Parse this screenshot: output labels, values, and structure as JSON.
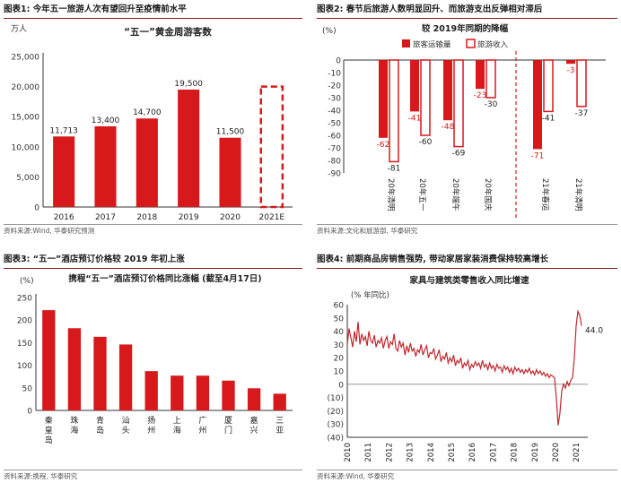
{
  "colors": {
    "bar": "#d7191c",
    "line": "#c1272d",
    "axis": "#333333",
    "dashed": "#d7191c"
  },
  "panels": [
    {
      "header_num": "图表1:",
      "header_text": "今年五一旅游人次有望回升至疫情前水平",
      "source": "资料来源:Wind, 华泰研究预测"
    },
    {
      "header_num": "图表2:",
      "header_text": "春节后旅游人数明显回升、而旅游支出反弹相对滞后",
      "source": "资料来源:文化和旅游部, 华泰研究"
    },
    {
      "header_num": "图表3:",
      "header_text": "“五一”酒店预订价格较 2019 年初上涨",
      "source": "资料来源:携程, 华泰研究"
    },
    {
      "header_num": "图表4:",
      "header_text": "前期商品房销售强势, 带动家居家装消费保持较高增长",
      "source": "资料来源:Wind, 华泰研究"
    }
  ],
  "chart_data": [
    {
      "type": "bar",
      "title": "“五一”黄金周游客数",
      "ylabel": "万人",
      "categories": [
        "2016",
        "2017",
        "2018",
        "2019",
        "2020",
        "2021E"
      ],
      "values": [
        11713,
        13400,
        14700,
        19500,
        11500,
        null
      ],
      "value_labels": [
        "11,713",
        "13,400",
        "14,700",
        "19,500",
        "11,500",
        ""
      ],
      "estimate_category": "2021E",
      "estimate_value": 20000,
      "ylim": [
        0,
        25000
      ],
      "yticks": [
        0,
        5000,
        10000,
        15000,
        20000,
        25000
      ],
      "ytick_labels": [
        "0",
        "5,000",
        "10,000",
        "15,000",
        "20,000",
        "25,000"
      ]
    },
    {
      "type": "bar",
      "title": "较 2019年同期的降幅",
      "ylabel": "(%)",
      "categories": [
        "20年清明",
        "20年五一",
        "20年端午",
        "20年国庆",
        "21年春运",
        "21年清明"
      ],
      "series": [
        {
          "name": "旅客运输量",
          "values": [
            -62,
            -41,
            -48,
            -23,
            -71,
            -3
          ],
          "labels": [
            "-62",
            "-41",
            "-48",
            "-23",
            "-71",
            "-3"
          ]
        },
        {
          "name": "旅游收入",
          "values": [
            -81,
            -60,
            -69,
            -30,
            -41,
            -37
          ],
          "labels": [
            "-81",
            "-60",
            "-69",
            "-30",
            "-41",
            "-37"
          ]
        }
      ],
      "ylim": [
        -90,
        0
      ],
      "yticks": [
        0,
        -10,
        -20,
        -30,
        -40,
        -50,
        -60,
        -70,
        -80,
        -90
      ],
      "ytick_labels": [
        "0",
        "-10",
        "-20",
        "-30",
        "-40",
        "-50",
        "-60",
        "-70",
        "-80",
        "-90"
      ]
    },
    {
      "type": "bar",
      "title": "携程“五一”酒店预订价格同比涨幅 (截至4月17日)",
      "ylabel": "(%)",
      "categories": [
        "秦皇岛",
        "珠海",
        "青岛",
        "汕头",
        "扬州",
        "上海",
        "广州",
        "厦门",
        "嘉兴",
        "三亚"
      ],
      "values": [
        222,
        182,
        163,
        146,
        87,
        77,
        77,
        66,
        49,
        37
      ],
      "ylim": [
        0,
        250
      ],
      "yticks": [
        0,
        50,
        100,
        150,
        200,
        250
      ],
      "ytick_labels": [
        "0",
        "50",
        "100",
        "150",
        "200",
        "250"
      ]
    },
    {
      "type": "line",
      "title": "家具与建筑类零售收入同比增速",
      "ylabel": "(% 年同比)",
      "series": [
        {
          "name": "家具与建筑类零售收入同比增速",
          "x_start": 2010,
          "x_end": 2021.25,
          "values": [
            30,
            42,
            35,
            28,
            40,
            32,
            47,
            30,
            38,
            33,
            36,
            29,
            40,
            33,
            31,
            37,
            28,
            33,
            31,
            35,
            27,
            33,
            36,
            27,
            32,
            30,
            38,
            27,
            25,
            33,
            28,
            31,
            22,
            29,
            24,
            31,
            25,
            27,
            21,
            26,
            24,
            30,
            22,
            26,
            29,
            20,
            24,
            23,
            27,
            19,
            22,
            26,
            17,
            21,
            19,
            24,
            16,
            20,
            17,
            22,
            14,
            18,
            16,
            20,
            12,
            16,
            14,
            18,
            11,
            15,
            13,
            17,
            14,
            16,
            12,
            18,
            13,
            15,
            11,
            16,
            12,
            14,
            10,
            15,
            12,
            13,
            9,
            14,
            11,
            13,
            9,
            12,
            8,
            13,
            10,
            12,
            9,
            11,
            8,
            11,
            9,
            12,
            8,
            10,
            7,
            11,
            8,
            10,
            7,
            9,
            6,
            8,
            5,
            7,
            6,
            5,
            -10,
            -31,
            -22,
            -5,
            0,
            -3,
            2,
            -1,
            3,
            5,
            20,
            44,
            55,
            52,
            44
          ]
        }
      ],
      "end_label": "44.0",
      "xticks": [
        "2010",
        "2011",
        "2012",
        "2013",
        "2014",
        "2015",
        "2016",
        "2017",
        "2018",
        "2019",
        "2020",
        "2021"
      ],
      "ylim": [
        -40,
        60
      ],
      "yticks": [
        60,
        50,
        40,
        30,
        20,
        10,
        0,
        -10,
        -20,
        -30,
        -40
      ],
      "ytick_labels": [
        "60",
        "50",
        "40",
        "30",
        "20",
        "10",
        "0",
        "(10)",
        "(20)",
        "(30)",
        "(40)"
      ]
    }
  ]
}
